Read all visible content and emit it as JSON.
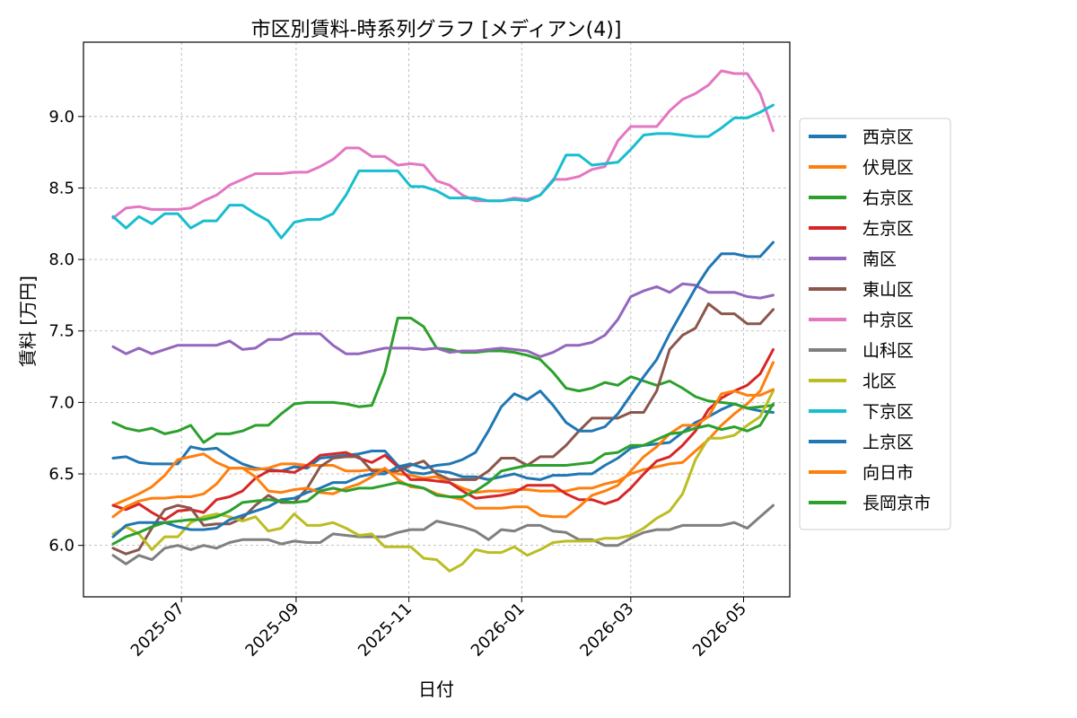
{
  "chart_data": {
    "type": "line",
    "title": "市区別賃料-時系列グラフ [メディアン(4)]",
    "xlabel": "日付",
    "ylabel": "賃料 [万円]",
    "x_ticks": [
      "2025-07",
      "2025-09",
      "2025-11",
      "2026-01",
      "2026-03",
      "2026-05"
    ],
    "x_range": [
      "2025-05-09",
      "2026-05-26"
    ],
    "y_ticks": [
      "6.0",
      "6.5",
      "7.0",
      "7.5",
      "8.0",
      "8.5",
      "9.0"
    ],
    "ylim": [
      5.64,
      9.52
    ],
    "grid": true,
    "legend_position": "right",
    "x": [
      "2025-05-25",
      "2025-06-01",
      "2025-06-08",
      "2025-06-15",
      "2025-06-22",
      "2025-06-29",
      "2025-07-06",
      "2025-07-13",
      "2025-07-20",
      "2025-07-27",
      "2025-08-03",
      "2025-08-10",
      "2025-08-17",
      "2025-08-24",
      "2025-08-31",
      "2025-09-07",
      "2025-09-14",
      "2025-09-21",
      "2025-09-28",
      "2025-10-05",
      "2025-10-12",
      "2025-10-19",
      "2025-10-26",
      "2025-11-02",
      "2025-11-09",
      "2025-11-16",
      "2025-11-23",
      "2025-11-30",
      "2025-12-07",
      "2025-12-14",
      "2025-12-21",
      "2025-12-28",
      "2026-01-04",
      "2026-01-11",
      "2026-01-18",
      "2026-01-25",
      "2026-02-01",
      "2026-02-08",
      "2026-02-15",
      "2026-02-22",
      "2026-03-01",
      "2026-03-08",
      "2026-03-15",
      "2026-03-22",
      "2026-03-29",
      "2026-04-05",
      "2026-04-12",
      "2026-04-19",
      "2026-04-26",
      "2026-05-03",
      "2026-05-10",
      "2026-05-17"
    ],
    "series": [
      {
        "name": "西京区",
        "color": "#1f77b4",
        "values": [
          6.61,
          6.62,
          6.58,
          6.57,
          6.57,
          6.57,
          6.69,
          6.67,
          6.68,
          6.62,
          6.57,
          6.54,
          6.53,
          6.52,
          6.55,
          6.54,
          6.61,
          6.62,
          6.63,
          6.64,
          6.66,
          6.66,
          6.56,
          6.51,
          6.5,
          6.52,
          6.51,
          6.48,
          6.48,
          6.46,
          6.48,
          6.5,
          6.47,
          6.46,
          6.49,
          6.49,
          6.5,
          6.5,
          6.56,
          6.61,
          6.68,
          6.7,
          6.71,
          6.72,
          6.79,
          6.86,
          6.9,
          6.95,
          6.99,
          6.96,
          6.94,
          6.93
        ]
      },
      {
        "name": "伏見区",
        "color": "#ff7f0e",
        "values": [
          6.28,
          6.32,
          6.36,
          6.41,
          6.49,
          6.6,
          6.62,
          6.64,
          6.58,
          6.54,
          6.54,
          6.53,
          6.54,
          6.57,
          6.57,
          6.56,
          6.56,
          6.56,
          6.52,
          6.52,
          6.53,
          6.53,
          6.5,
          6.49,
          6.47,
          6.48,
          6.44,
          6.4,
          6.37,
          6.38,
          6.38,
          6.39,
          6.39,
          6.38,
          6.38,
          6.38,
          6.4,
          6.4,
          6.43,
          6.45,
          6.5,
          6.53,
          6.55,
          6.57,
          6.58,
          6.66,
          6.74,
          6.84,
          6.92,
          6.99,
          7.08,
          7.28
        ]
      },
      {
        "name": "右京区",
        "color": "#2ca02c",
        "values": [
          6.86,
          6.82,
          6.8,
          6.82,
          6.78,
          6.8,
          6.84,
          6.72,
          6.78,
          6.78,
          6.8,
          6.84,
          6.84,
          6.92,
          6.99,
          7.0,
          7.0,
          7.0,
          6.99,
          6.97,
          6.98,
          7.21,
          7.59,
          7.59,
          7.53,
          7.38,
          7.37,
          7.35,
          7.35,
          7.36,
          7.36,
          7.35,
          7.33,
          7.3,
          7.21,
          7.1,
          7.08,
          7.1,
          7.14,
          7.12,
          7.18,
          7.15,
          7.12,
          7.15,
          7.1,
          7.04,
          7.01,
          7.0,
          6.99,
          6.96,
          6.97,
          6.98
        ]
      },
      {
        "name": "左京区",
        "color": "#d62728",
        "values": [
          6.28,
          6.25,
          6.29,
          6.23,
          6.18,
          6.24,
          6.25,
          6.23,
          6.32,
          6.34,
          6.38,
          6.47,
          6.52,
          6.52,
          6.51,
          6.56,
          6.63,
          6.64,
          6.65,
          6.61,
          6.58,
          6.63,
          6.55,
          6.46,
          6.46,
          6.45,
          6.44,
          6.38,
          6.33,
          6.34,
          6.35,
          6.37,
          6.42,
          6.42,
          6.42,
          6.36,
          6.32,
          6.32,
          6.29,
          6.32,
          6.4,
          6.5,
          6.59,
          6.62,
          6.7,
          6.8,
          6.95,
          7.03,
          7.08,
          7.12,
          7.2,
          7.37
        ]
      },
      {
        "name": "南区",
        "color": "#9467bd",
        "values": [
          7.39,
          7.34,
          7.38,
          7.34,
          7.37,
          7.4,
          7.4,
          7.4,
          7.4,
          7.43,
          7.37,
          7.38,
          7.44,
          7.44,
          7.48,
          7.48,
          7.48,
          7.4,
          7.34,
          7.34,
          7.36,
          7.38,
          7.38,
          7.38,
          7.37,
          7.38,
          7.35,
          7.36,
          7.36,
          7.37,
          7.38,
          7.37,
          7.36,
          7.32,
          7.35,
          7.4,
          7.4,
          7.42,
          7.47,
          7.58,
          7.74,
          7.78,
          7.81,
          7.77,
          7.83,
          7.82,
          7.77,
          7.77,
          7.77,
          7.74,
          7.73,
          7.75
        ]
      },
      {
        "name": "東山区",
        "color": "#8c564b",
        "values": [
          5.98,
          5.94,
          5.97,
          6.12,
          6.25,
          6.28,
          6.26,
          6.14,
          6.15,
          6.15,
          6.19,
          6.28,
          6.35,
          6.3,
          6.3,
          6.4,
          6.55,
          6.61,
          6.62,
          6.62,
          6.52,
          6.52,
          6.52,
          6.56,
          6.59,
          6.5,
          6.46,
          6.46,
          6.46,
          6.52,
          6.61,
          6.61,
          6.56,
          6.62,
          6.62,
          6.7,
          6.8,
          6.89,
          6.89,
          6.89,
          6.93,
          6.93,
          7.08,
          7.37,
          7.47,
          7.52,
          7.69,
          7.62,
          7.62,
          7.55,
          7.55,
          7.65
        ]
      },
      {
        "name": "中京区",
        "color": "#e377c2",
        "values": [
          8.29,
          8.36,
          8.37,
          8.35,
          8.35,
          8.35,
          8.36,
          8.41,
          8.45,
          8.52,
          8.56,
          8.6,
          8.6,
          8.6,
          8.61,
          8.61,
          8.65,
          8.7,
          8.78,
          8.78,
          8.72,
          8.72,
          8.66,
          8.67,
          8.66,
          8.55,
          8.52,
          8.45,
          8.41,
          8.41,
          8.41,
          8.43,
          8.42,
          8.45,
          8.56,
          8.56,
          8.58,
          8.63,
          8.65,
          8.83,
          8.93,
          8.93,
          8.93,
          9.04,
          9.12,
          9.16,
          9.22,
          9.32,
          9.3,
          9.3,
          9.16,
          8.9
        ]
      },
      {
        "name": "山科区",
        "color": "#7f7f7f",
        "values": [
          5.93,
          5.87,
          5.93,
          5.9,
          5.98,
          6.0,
          5.97,
          6.0,
          5.98,
          6.02,
          6.04,
          6.04,
          6.04,
          6.01,
          6.03,
          6.02,
          6.02,
          6.08,
          6.07,
          6.06,
          6.06,
          6.06,
          6.09,
          6.11,
          6.11,
          6.17,
          6.15,
          6.13,
          6.1,
          6.04,
          6.11,
          6.1,
          6.14,
          6.14,
          6.1,
          6.09,
          6.04,
          6.04,
          6.0,
          6.0,
          6.05,
          6.09,
          6.11,
          6.11,
          6.14,
          6.14,
          6.14,
          6.14,
          6.16,
          6.12,
          6.2,
          6.28
        ]
      },
      {
        "name": "北区",
        "color": "#bcbd22",
        "values": [
          6.08,
          6.13,
          6.08,
          5.97,
          6.06,
          6.06,
          6.16,
          6.2,
          6.22,
          6.2,
          6.17,
          6.2,
          6.1,
          6.12,
          6.22,
          6.14,
          6.14,
          6.16,
          6.12,
          6.07,
          6.08,
          5.99,
          5.99,
          5.99,
          5.91,
          5.9,
          5.82,
          5.87,
          5.97,
          5.95,
          5.95,
          5.99,
          5.93,
          5.97,
          6.02,
          6.03,
          6.03,
          6.03,
          6.05,
          6.05,
          6.07,
          6.12,
          6.19,
          6.24,
          6.36,
          6.6,
          6.75,
          6.75,
          6.77,
          6.84,
          6.9,
          7.08
        ]
      },
      {
        "name": "下京区",
        "color": "#17becf",
        "values": [
          8.3,
          8.22,
          8.3,
          8.25,
          8.32,
          8.32,
          8.22,
          8.27,
          8.27,
          8.38,
          8.38,
          8.32,
          8.27,
          8.15,
          8.26,
          8.28,
          8.28,
          8.32,
          8.45,
          8.62,
          8.62,
          8.62,
          8.62,
          8.51,
          8.51,
          8.48,
          8.43,
          8.43,
          8.43,
          8.41,
          8.41,
          8.42,
          8.41,
          8.45,
          8.55,
          8.73,
          8.73,
          8.66,
          8.67,
          8.68,
          8.77,
          8.87,
          8.88,
          8.88,
          8.87,
          8.86,
          8.86,
          8.92,
          8.99,
          8.99,
          9.03,
          9.08
        ]
      },
      {
        "name": "上京区",
        "color": "#1f77b4",
        "values": [
          6.06,
          6.14,
          6.16,
          6.16,
          6.16,
          6.13,
          6.11,
          6.11,
          6.12,
          6.18,
          6.21,
          6.24,
          6.27,
          6.32,
          6.33,
          6.37,
          6.4,
          6.44,
          6.44,
          6.48,
          6.5,
          6.5,
          6.55,
          6.57,
          6.54,
          6.56,
          6.57,
          6.6,
          6.65,
          6.8,
          6.97,
          7.06,
          7.02,
          7.08,
          6.98,
          6.86,
          6.8,
          6.8,
          6.83,
          6.92,
          7.05,
          7.18,
          7.3,
          7.48,
          7.64,
          7.8,
          7.94,
          8.04,
          8.04,
          8.02,
          8.02,
          8.12
        ]
      },
      {
        "name": "向日市",
        "color": "#ff7f0e",
        "values": [
          6.2,
          6.27,
          6.31,
          6.33,
          6.33,
          6.34,
          6.34,
          6.36,
          6.43,
          6.54,
          6.54,
          6.48,
          6.38,
          6.37,
          6.39,
          6.4,
          6.37,
          6.36,
          6.4,
          6.43,
          6.48,
          6.54,
          6.46,
          6.41,
          6.4,
          6.36,
          6.34,
          6.32,
          6.26,
          6.26,
          6.26,
          6.27,
          6.27,
          6.21,
          6.2,
          6.2,
          6.27,
          6.35,
          6.38,
          6.42,
          6.52,
          6.62,
          6.69,
          6.78,
          6.84,
          6.84,
          6.9,
          7.06,
          7.08,
          7.05,
          7.05,
          7.09
        ]
      },
      {
        "name": "長岡京市",
        "color": "#2ca02c",
        "values": [
          6.01,
          6.06,
          6.09,
          6.13,
          6.16,
          6.17,
          6.18,
          6.18,
          6.2,
          6.24,
          6.3,
          6.31,
          6.32,
          6.31,
          6.3,
          6.31,
          6.38,
          6.4,
          6.38,
          6.4,
          6.4,
          6.42,
          6.44,
          6.42,
          6.4,
          6.35,
          6.34,
          6.34,
          6.38,
          6.44,
          6.52,
          6.54,
          6.56,
          6.56,
          6.56,
          6.56,
          6.57,
          6.58,
          6.64,
          6.65,
          6.7,
          6.7,
          6.74,
          6.78,
          6.79,
          6.82,
          6.84,
          6.81,
          6.83,
          6.8,
          6.84,
          6.99
        ]
      }
    ]
  }
}
